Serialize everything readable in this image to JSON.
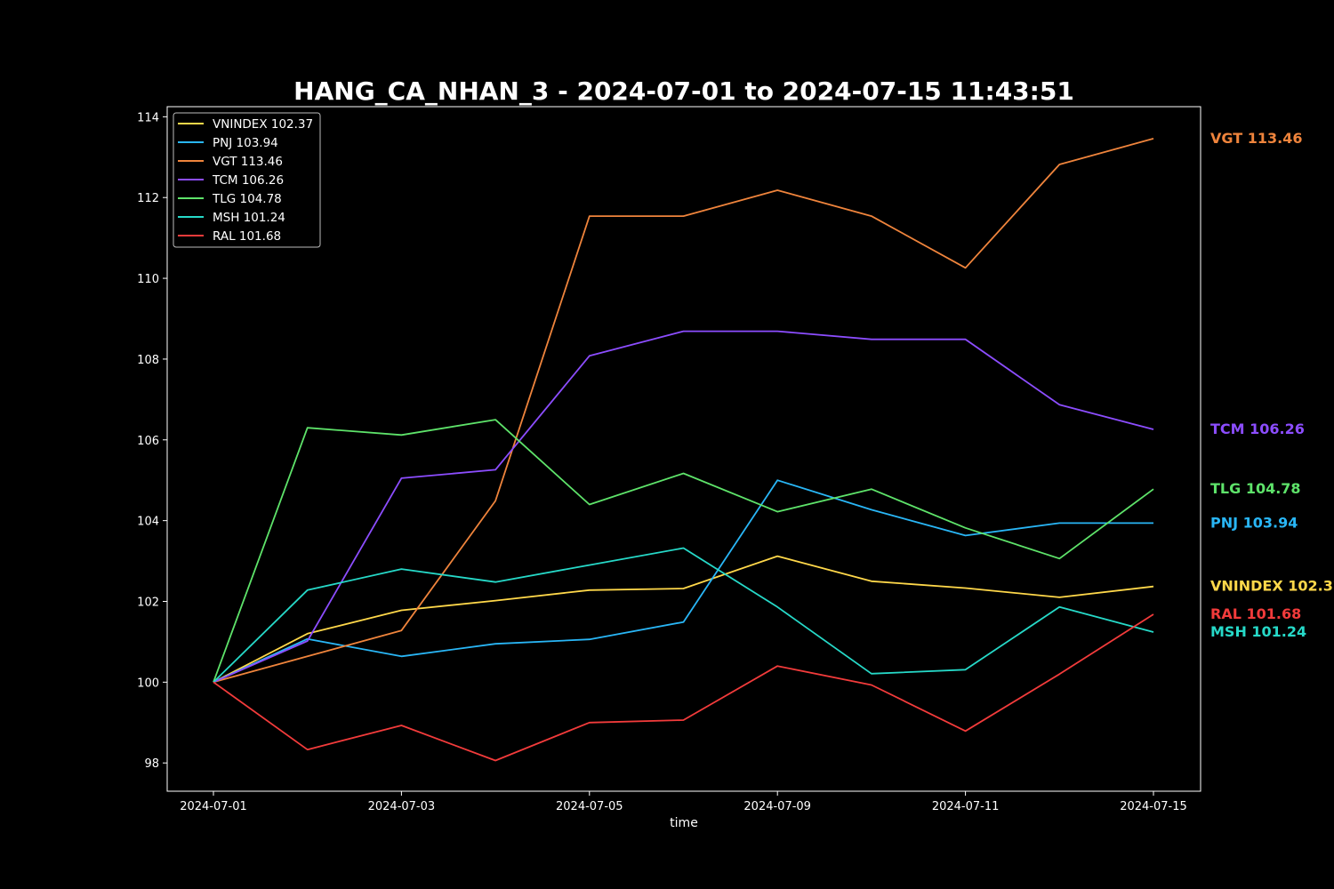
{
  "chart_data": {
    "type": "line",
    "title": "HANG_CA_NHAN_3 - 2024-07-01 to 2024-07-15 11:43:51",
    "xlabel": "time",
    "ylabel": "",
    "x": [
      "2024-07-01",
      "2024-07-02",
      "2024-07-03",
      "2024-07-04",
      "2024-07-05",
      "2024-07-08",
      "2024-07-09",
      "2024-07-10",
      "2024-07-11",
      "2024-07-12",
      "2024-07-15"
    ],
    "x_ticks": [
      "2024-07-01",
      "2024-07-03",
      "2024-07-05",
      "2024-07-09",
      "2024-07-11",
      "2024-07-15"
    ],
    "y_ticks": [
      98,
      100,
      102,
      104,
      106,
      108,
      110,
      112,
      114
    ],
    "ylim": [
      97.3,
      114.25
    ],
    "grid": false,
    "legend_position": "top-left",
    "series": [
      {
        "name": "VNINDEX",
        "label": "VNINDEX 102.37",
        "color": "#ffd84a",
        "values": [
          100,
          101.2,
          101.78,
          102.02,
          102.28,
          102.32,
          103.12,
          102.5,
          102.33,
          102.1,
          102.37
        ]
      },
      {
        "name": "PNJ",
        "label": "PNJ 103.94",
        "color": "#29b6f6",
        "values": [
          100,
          101.07,
          100.64,
          100.95,
          101.06,
          101.49,
          105,
          104.27,
          103.63,
          103.94,
          103.94
        ]
      },
      {
        "name": "VGT",
        "label": "VGT 113.46",
        "color": "#ef843c",
        "values": [
          100,
          100.64,
          101.28,
          104.49,
          111.54,
          111.54,
          112.18,
          111.54,
          110.26,
          112.82,
          113.46
        ]
      },
      {
        "name": "TCM",
        "label": "TCM 106.26",
        "color": "#8c4dff",
        "values": [
          100,
          101.02,
          105.05,
          105.26,
          108.08,
          108.69,
          108.69,
          108.49,
          108.49,
          106.87,
          106.26
        ]
      },
      {
        "name": "TLG",
        "label": "TLG 104.78",
        "color": "#5ee36a",
        "values": [
          100,
          106.3,
          106.12,
          106.5,
          104.4,
          105.17,
          104.22,
          104.78,
          103.82,
          103.06,
          104.78
        ]
      },
      {
        "name": "MSH",
        "label": "MSH 101.24",
        "color": "#26d9c8",
        "values": [
          100,
          102.28,
          102.8,
          102.48,
          102.9,
          103.32,
          101.86,
          100.21,
          100.31,
          101.86,
          101.24
        ]
      },
      {
        "name": "RAL",
        "label": "RAL 101.68",
        "color": "#f23b3b",
        "values": [
          100,
          98.33,
          98.93,
          98.06,
          99.0,
          99.06,
          100.4,
          99.93,
          98.79,
          100.2,
          101.68
        ]
      }
    ]
  }
}
